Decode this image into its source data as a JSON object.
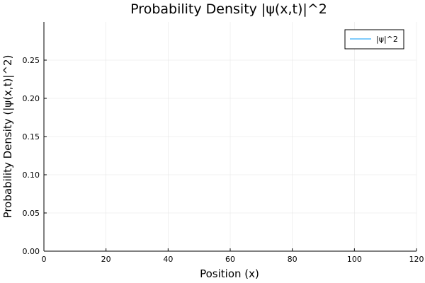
{
  "chart_data": {
    "type": "line",
    "title": "Probability Density |ψ(x,t)|^2",
    "xlabel": "Position (x)",
    "ylabel": "Probability Density (|ψ(x,t)|^2)",
    "xlim": [
      0,
      120
    ],
    "ylim": [
      0,
      0.3
    ],
    "xticks": [
      0,
      20,
      40,
      60,
      80,
      100,
      120
    ],
    "yticks": [
      0.0,
      0.05,
      0.1,
      0.15,
      0.2,
      0.25
    ],
    "xtick_labels": [
      "0",
      "20",
      "40",
      "60",
      "80",
      "100",
      "120"
    ],
    "ytick_labels": [
      "0.00",
      "0.05",
      "0.10",
      "0.15",
      "0.20",
      "0.25"
    ],
    "grid": true,
    "legend_position": "top-right",
    "series": [
      {
        "name": "|ψ|^2",
        "color": "#009AFA",
        "x": [
          0,
          10,
          20,
          30,
          40,
          50
        ],
        "y": [
          0.0,
          0.0,
          0.0,
          0.0,
          0.0,
          0.0
        ]
      }
    ]
  }
}
